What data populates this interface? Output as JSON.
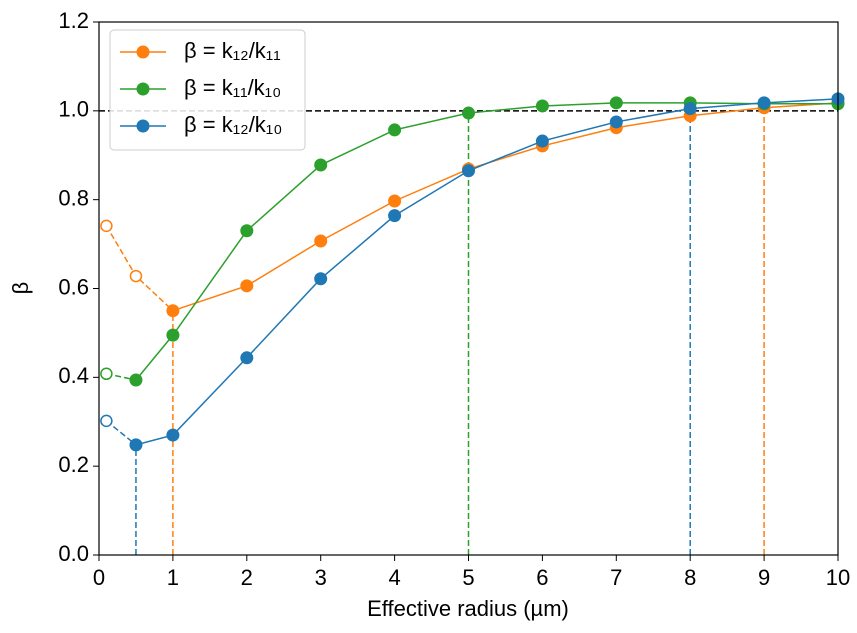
{
  "chart_data": {
    "type": "line",
    "xlabel": "Effective radius (µm)",
    "ylabel": "β",
    "xlim": [
      0,
      10
    ],
    "xticks": [
      0,
      1,
      2,
      3,
      4,
      5,
      6,
      7,
      8,
      9,
      10
    ],
    "ylim": [
      0,
      1.2
    ],
    "yticks": [
      {
        "value": 0,
        "label": "0.0"
      },
      0.2,
      0.4,
      0.6,
      0.8,
      {
        "value": 1,
        "label": "1.0"
      },
      1.2
    ],
    "reference_y": 1.0,
    "legend": "upper left",
    "series": [
      {
        "name": "β = k₁₂/k₁₁",
        "color": "#ff7f0e",
        "x": [
          1,
          2,
          3,
          4,
          5,
          6,
          7,
          8,
          9,
          10
        ],
        "values": [
          0.55,
          0.606,
          0.707,
          0.797,
          0.869,
          0.921,
          0.962,
          0.989,
          1.007,
          1.018
        ],
        "hollow_x": [
          0.1,
          0.5
        ],
        "hollow_values": [
          0.741,
          0.628
        ]
      },
      {
        "name": "β = k₁₁/k₁₀",
        "color": "#2ca02c",
        "x": [
          0.5,
          1,
          2,
          3,
          4,
          5,
          6,
          7,
          8,
          9,
          10
        ],
        "values": [
          0.394,
          0.495,
          0.73,
          0.878,
          0.957,
          0.995,
          1.011,
          1.018,
          1.018,
          1.016,
          1.016
        ],
        "hollow_x": [
          0.1
        ],
        "hollow_values": [
          0.408
        ]
      },
      {
        "name": "β = k₁₂/k₁₀",
        "color": "#1f77b4",
        "x": [
          0.5,
          1,
          2,
          3,
          4,
          5,
          6,
          7,
          8,
          9,
          10
        ],
        "values": [
          0.248,
          0.27,
          0.444,
          0.622,
          0.764,
          0.865,
          0.932,
          0.975,
          1.005,
          1.018,
          1.027
        ],
        "hollow_x": [
          0.1
        ],
        "hollow_values": [
          0.302
        ]
      }
    ],
    "vlines": [
      {
        "x": 0.5,
        "y": 0.248,
        "color": "#1f77b4"
      },
      {
        "x": 1,
        "y": 0.55,
        "color": "#ff7f0e"
      },
      {
        "x": 5,
        "y": 0.995,
        "color": "#2ca02c"
      },
      {
        "x": 8,
        "y": 1.005,
        "color": "#1f77b4"
      },
      {
        "x": 9,
        "y": 1.007,
        "color": "#ff7f0e"
      }
    ]
  }
}
